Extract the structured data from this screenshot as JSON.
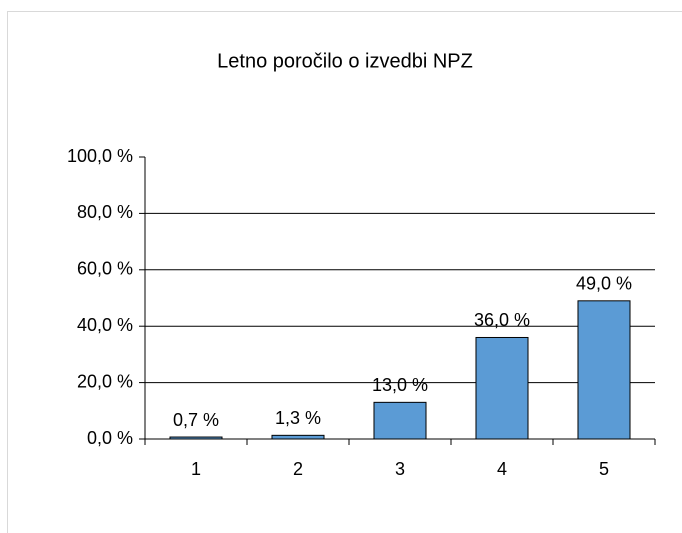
{
  "chart_data": {
    "type": "bar",
    "title": "Letno poročilo o izvedbi NPZ",
    "categories": [
      "1",
      "2",
      "3",
      "4",
      "5"
    ],
    "values": [
      0.7,
      1.3,
      13,
      36,
      49
    ],
    "value_labels": [
      "0,7 %",
      "1,3 %",
      "13,0 %",
      "36,0 %",
      "49,0 %"
    ],
    "color": "#5b9bd5",
    "ylim": [
      0,
      100
    ],
    "yticks": [
      {
        "value": 0,
        "label": "0,0 %"
      },
      {
        "value": 20,
        "label": "20,0 %"
      },
      {
        "value": 40,
        "label": "40,0 %"
      },
      {
        "value": 60,
        "label": "60,0 %"
      },
      {
        "value": 80,
        "label": "80,0 %"
      },
      {
        "value": 100,
        "label": "100,0 %"
      }
    ],
    "grid": true
  }
}
